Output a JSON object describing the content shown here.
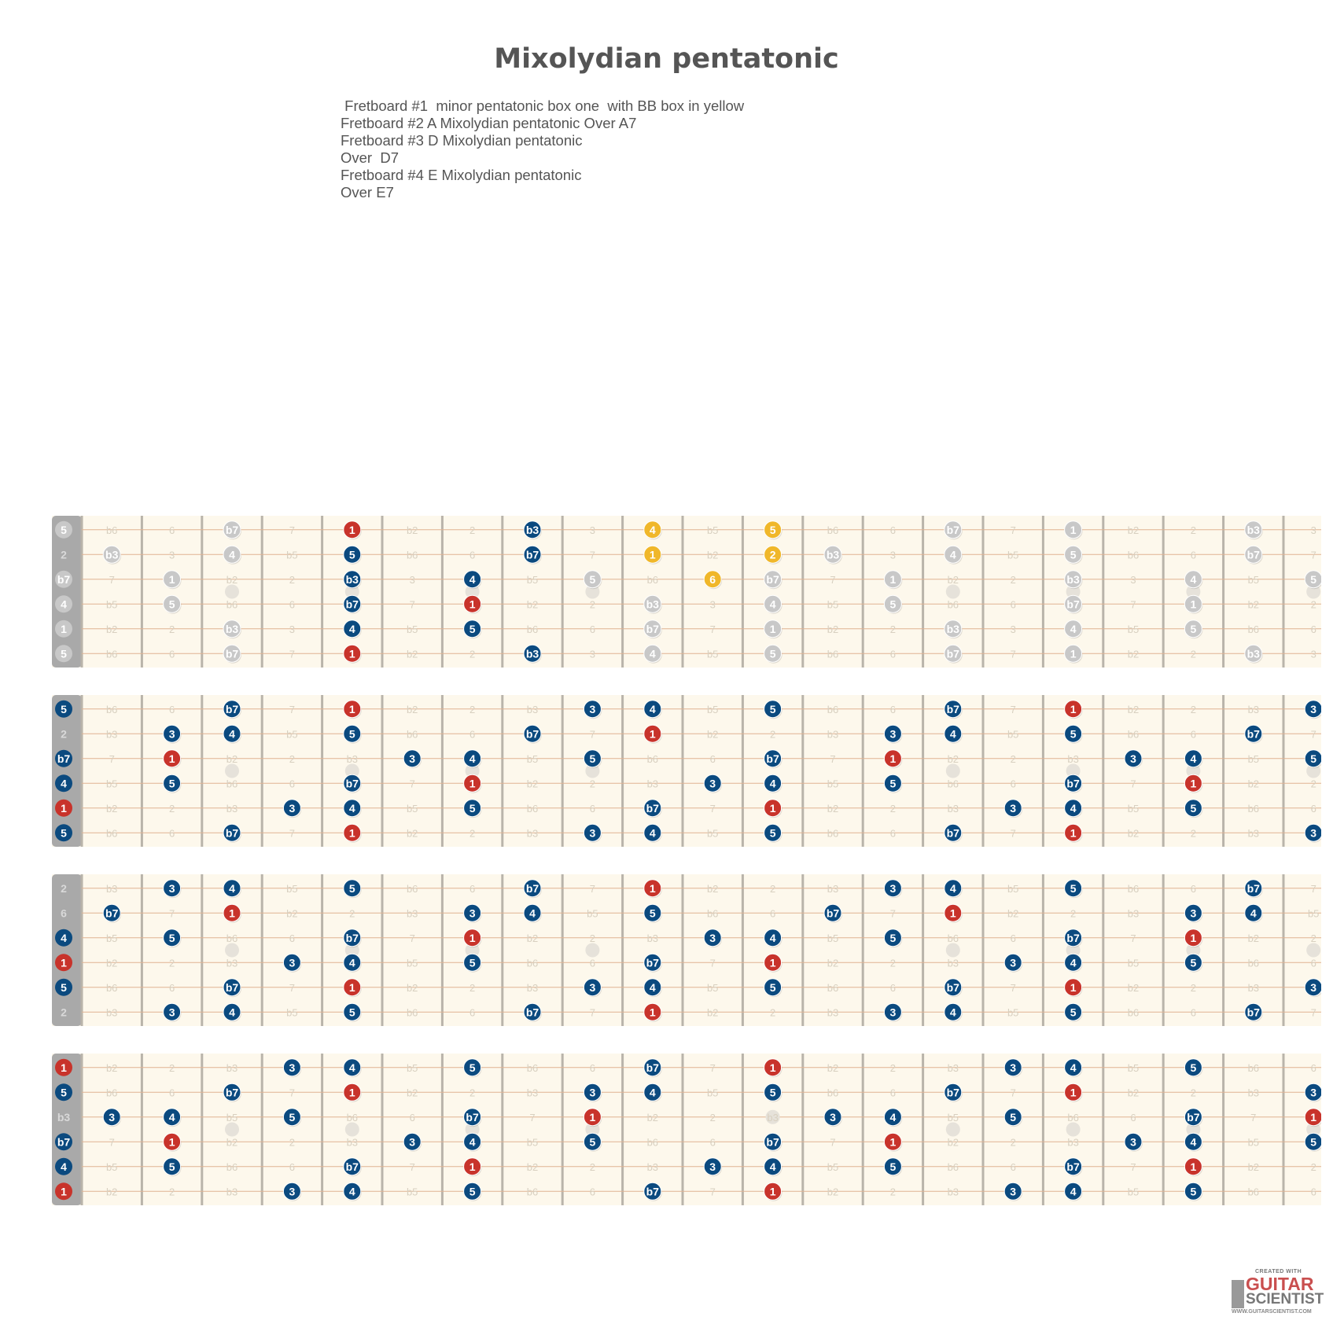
{
  "title": "Mixolydian pentatonic",
  "description": [
    " Fretboard #1  minor pentatonic box one  with BB box in yellow",
    "Fretboard #2 A Mixolydian pentatonic Over A7",
    "Fretboard #3 D Mixolydian pentatonic",
    "Over  D7",
    "Fretboard #4 E Mixolydian pentatonic",
    "Over E7"
  ],
  "colors": {
    "root": "#c8332b",
    "scale": "#0b4a7f",
    "blues_box": "#f0b72a",
    "ghost": "#c8c8c8",
    "board": "#fdf8ec",
    "fret": "#b9b4aa",
    "string": "#e0b292",
    "nut": "#a9a9a9",
    "faint_text": "#d8d0c0"
  },
  "fretboards": [
    {
      "name": "fretboard-1",
      "strings": [
        {
          "open": "5",
          "open_style": "ghost",
          "notes": [
            "b6",
            "6",
            "b7",
            "7",
            "1",
            "b2",
            "2",
            "b3",
            "3",
            "4",
            "b5",
            "5",
            "b6",
            "6",
            "b7",
            "7",
            "1",
            "b2",
            "2",
            "b3",
            "3"
          ],
          "marked": {
            "3": "ghost",
            "5": "root",
            "8": "scale",
            "10": "yellow",
            "12": "yellow",
            "15": "ghost",
            "17": "ghost",
            "20": "ghost"
          }
        },
        {
          "open": "2",
          "open_style": "plain",
          "notes": [
            "b3",
            "3",
            "4",
            "b5",
            "5",
            "b6",
            "6",
            "b7",
            "7",
            "1",
            "b2",
            "2",
            "b3",
            "3",
            "4",
            "b5",
            "5",
            "b6",
            "6",
            "b7",
            "7"
          ],
          "marked": {
            "1": "ghost",
            "3": "ghost",
            "5": "scale",
            "8": "scale",
            "10": "yellow",
            "12": "yellow",
            "13": "ghost",
            "15": "ghost",
            "17": "ghost",
            "20": "ghost"
          }
        },
        {
          "open": "b7",
          "open_style": "ghost",
          "notes": [
            "7",
            "1",
            "b2",
            "2",
            "b3",
            "3",
            "4",
            "b5",
            "5",
            "b6",
            "6",
            "b7",
            "7",
            "1",
            "b2",
            "2",
            "b3",
            "3",
            "4",
            "b5",
            "5"
          ],
          "marked": {
            "2": "ghost",
            "5": "scale",
            "7": "scale",
            "9": "ghost",
            "11": "yellow",
            "12": "ghost",
            "14": "ghost",
            "17": "ghost",
            "19": "ghost",
            "21": "ghost"
          }
        },
        {
          "open": "4",
          "open_style": "ghost",
          "notes": [
            "b5",
            "5",
            "b6",
            "6",
            "b7",
            "7",
            "1",
            "b2",
            "2",
            "b3",
            "3",
            "4",
            "b5",
            "5",
            "b6",
            "6",
            "b7",
            "7",
            "1",
            "b2",
            "2"
          ],
          "marked": {
            "2": "ghost",
            "5": "scale",
            "7": "root",
            "10": "ghost",
            "12": "ghost",
            "14": "ghost",
            "17": "ghost",
            "19": "ghost"
          }
        },
        {
          "open": "1",
          "open_style": "ghost",
          "notes": [
            "b2",
            "2",
            "b3",
            "3",
            "4",
            "b5",
            "5",
            "b6",
            "6",
            "b7",
            "7",
            "1",
            "b2",
            "2",
            "b3",
            "3",
            "4",
            "b5",
            "5",
            "b6",
            "6"
          ],
          "marked": {
            "3": "ghost",
            "5": "scale",
            "7": "scale",
            "10": "ghost",
            "12": "ghost",
            "15": "ghost",
            "17": "ghost",
            "19": "ghost"
          }
        },
        {
          "open": "5",
          "open_style": "ghost",
          "notes": [
            "b6",
            "6",
            "b7",
            "7",
            "1",
            "b2",
            "2",
            "b3",
            "3",
            "4",
            "b5",
            "5",
            "b6",
            "6",
            "b7",
            "7",
            "1",
            "b2",
            "2",
            "b3",
            "3"
          ],
          "marked": {
            "3": "ghost",
            "5": "root",
            "8": "scale",
            "10": "ghost",
            "12": "ghost",
            "15": "ghost",
            "17": "ghost",
            "20": "ghost"
          }
        }
      ]
    },
    {
      "name": "fretboard-2",
      "strings": [
        {
          "open": "5",
          "open_style": "scale",
          "notes": [
            "b6",
            "6",
            "b7",
            "7",
            "1",
            "b2",
            "2",
            "b3",
            "3",
            "4",
            "b5",
            "5",
            "b6",
            "6",
            "b7",
            "7",
            "1",
            "b2",
            "2",
            "b3",
            "3"
          ],
          "marked": {
            "3": "scale",
            "5": "root",
            "9": "scale",
            "10": "scale",
            "12": "scale",
            "15": "scale",
            "17": "root",
            "21": "scale"
          }
        },
        {
          "open": "2",
          "open_style": "plain",
          "notes": [
            "b3",
            "3",
            "4",
            "b5",
            "5",
            "b6",
            "6",
            "b7",
            "7",
            "1",
            "b2",
            "2",
            "b3",
            "3",
            "4",
            "b5",
            "5",
            "b6",
            "6",
            "b7",
            "7"
          ],
          "marked": {
            "2": "scale",
            "3": "scale",
            "5": "scale",
            "8": "scale",
            "10": "root",
            "14": "scale",
            "15": "scale",
            "17": "scale",
            "20": "scale"
          }
        },
        {
          "open": "b7",
          "open_style": "scale",
          "notes": [
            "7",
            "1",
            "b2",
            "2",
            "b3",
            "3",
            "4",
            "b5",
            "5",
            "b6",
            "6",
            "b7",
            "7",
            "1",
            "b2",
            "2",
            "b3",
            "3",
            "4",
            "b5",
            "5"
          ],
          "marked": {
            "2": "root",
            "6": "scale",
            "7": "scale",
            "9": "scale",
            "12": "scale",
            "14": "root",
            "18": "scale",
            "19": "scale",
            "21": "scale"
          }
        },
        {
          "open": "4",
          "open_style": "scale",
          "notes": [
            "b5",
            "5",
            "b6",
            "6",
            "b7",
            "7",
            "1",
            "b2",
            "2",
            "b3",
            "3",
            "4",
            "b5",
            "5",
            "b6",
            "6",
            "b7",
            "7",
            "1",
            "b2",
            "2"
          ],
          "marked": {
            "2": "scale",
            "5": "scale",
            "7": "root",
            "11": "scale",
            "12": "scale",
            "14": "scale",
            "17": "scale",
            "19": "root"
          }
        },
        {
          "open": "1",
          "open_style": "root",
          "notes": [
            "b2",
            "2",
            "b3",
            "3",
            "4",
            "b5",
            "5",
            "b6",
            "6",
            "b7",
            "7",
            "1",
            "b2",
            "2",
            "b3",
            "3",
            "4",
            "b5",
            "5",
            "b6",
            "6"
          ],
          "marked": {
            "4": "scale",
            "5": "scale",
            "7": "scale",
            "10": "scale",
            "12": "root",
            "16": "scale",
            "17": "scale",
            "19": "scale"
          }
        },
        {
          "open": "5",
          "open_style": "scale",
          "notes": [
            "b6",
            "6",
            "b7",
            "7",
            "1",
            "b2",
            "2",
            "b3",
            "3",
            "4",
            "b5",
            "5",
            "b6",
            "6",
            "b7",
            "7",
            "1",
            "b2",
            "2",
            "b3",
            "3"
          ],
          "marked": {
            "3": "scale",
            "5": "root",
            "9": "scale",
            "10": "scale",
            "12": "scale",
            "15": "scale",
            "17": "root",
            "21": "scale"
          }
        }
      ]
    },
    {
      "name": "fretboard-3",
      "strings": [
        {
          "open": "2",
          "open_style": "plain",
          "notes": [
            "b3",
            "3",
            "4",
            "b5",
            "5",
            "b6",
            "6",
            "b7",
            "7",
            "1",
            "b2",
            "2",
            "b3",
            "3",
            "4",
            "b5",
            "5",
            "b6",
            "6",
            "b7",
            "7"
          ],
          "marked": {
            "2": "scale",
            "3": "scale",
            "5": "scale",
            "8": "scale",
            "10": "root",
            "14": "scale",
            "15": "scale",
            "17": "scale",
            "20": "scale"
          }
        },
        {
          "open": "6",
          "open_style": "plain",
          "notes": [
            "b7",
            "7",
            "1",
            "b2",
            "2",
            "b3",
            "3",
            "4",
            "b5",
            "5",
            "b6",
            "6",
            "b7",
            "7",
            "1",
            "b2",
            "2",
            "b3",
            "3",
            "4",
            "b5"
          ],
          "marked": {
            "1": "scale",
            "3": "root",
            "7": "scale",
            "8": "scale",
            "10": "scale",
            "13": "scale",
            "15": "root",
            "19": "scale",
            "20": "scale"
          }
        },
        {
          "open": "4",
          "open_style": "scale",
          "notes": [
            "b5",
            "5",
            "b6",
            "6",
            "b7",
            "7",
            "1",
            "b2",
            "2",
            "b3",
            "3",
            "4",
            "b5",
            "5",
            "b6",
            "6",
            "b7",
            "7",
            "1",
            "b2",
            "2"
          ],
          "marked": {
            "2": "scale",
            "5": "scale",
            "7": "root",
            "11": "scale",
            "12": "scale",
            "14": "scale",
            "17": "scale",
            "19": "root"
          }
        },
        {
          "open": "1",
          "open_style": "root",
          "notes": [
            "b2",
            "2",
            "b3",
            "3",
            "4",
            "b5",
            "5",
            "b6",
            "6",
            "b7",
            "7",
            "1",
            "b2",
            "2",
            "b3",
            "3",
            "4",
            "b5",
            "5",
            "b6",
            "6"
          ],
          "marked": {
            "4": "scale",
            "5": "scale",
            "7": "scale",
            "10": "scale",
            "12": "root",
            "16": "scale",
            "17": "scale",
            "19": "scale"
          }
        },
        {
          "open": "5",
          "open_style": "scale",
          "notes": [
            "b6",
            "6",
            "b7",
            "7",
            "1",
            "b2",
            "2",
            "b3",
            "3",
            "4",
            "b5",
            "5",
            "b6",
            "6",
            "b7",
            "7",
            "1",
            "b2",
            "2",
            "b3",
            "3"
          ],
          "marked": {
            "3": "scale",
            "5": "root",
            "9": "scale",
            "10": "scale",
            "12": "scale",
            "15": "scale",
            "17": "root",
            "21": "scale"
          }
        },
        {
          "open": "2",
          "open_style": "plain",
          "notes": [
            "b3",
            "3",
            "4",
            "b5",
            "5",
            "b6",
            "6",
            "b7",
            "7",
            "1",
            "b2",
            "2",
            "b3",
            "3",
            "4",
            "b5",
            "5",
            "b6",
            "6",
            "b7",
            "7"
          ],
          "marked": {
            "2": "scale",
            "3": "scale",
            "5": "scale",
            "8": "scale",
            "10": "root",
            "14": "scale",
            "15": "scale",
            "17": "scale",
            "20": "scale"
          }
        }
      ]
    },
    {
      "name": "fretboard-4",
      "strings": [
        {
          "open": "1",
          "open_style": "root",
          "notes": [
            "b2",
            "2",
            "b3",
            "3",
            "4",
            "b5",
            "5",
            "b6",
            "6",
            "b7",
            "7",
            "1",
            "b2",
            "2",
            "b3",
            "3",
            "4",
            "b5",
            "5",
            "b6",
            "6"
          ],
          "marked": {
            "4": "scale",
            "5": "scale",
            "7": "scale",
            "10": "scale",
            "12": "root",
            "16": "scale",
            "17": "scale",
            "19": "scale"
          }
        },
        {
          "open": "5",
          "open_style": "scale",
          "notes": [
            "b6",
            "6",
            "b7",
            "7",
            "1",
            "b2",
            "2",
            "b3",
            "3",
            "4",
            "b5",
            "5",
            "b6",
            "6",
            "b7",
            "7",
            "1",
            "b2",
            "2",
            "b3",
            "3"
          ],
          "marked": {
            "3": "scale",
            "5": "root",
            "9": "scale",
            "10": "scale",
            "12": "scale",
            "15": "scale",
            "17": "root",
            "21": "scale"
          }
        },
        {
          "open": "b3",
          "open_style": "plain",
          "notes": [
            "3",
            "4",
            "b5",
            "5",
            "b6",
            "6",
            "b7",
            "7",
            "1",
            "b2",
            "2",
            "b3",
            "3",
            "4",
            "b5",
            "5",
            "b6",
            "6",
            "b7",
            "7",
            "1"
          ],
          "marked": {
            "1": "scale",
            "2": "scale",
            "4": "scale",
            "7": "scale",
            "9": "root",
            "13": "scale",
            "14": "scale",
            "16": "scale",
            "19": "scale",
            "21": "root"
          }
        },
        {
          "open": "b7",
          "open_style": "scale",
          "notes": [
            "7",
            "1",
            "b2",
            "2",
            "b3",
            "3",
            "4",
            "b5",
            "5",
            "b6",
            "6",
            "b7",
            "7",
            "1",
            "b2",
            "2",
            "b3",
            "3",
            "4",
            "b5",
            "5"
          ],
          "marked": {
            "2": "root",
            "6": "scale",
            "7": "scale",
            "9": "scale",
            "12": "scale",
            "14": "root",
            "18": "scale",
            "19": "scale",
            "21": "scale"
          }
        },
        {
          "open": "4",
          "open_style": "scale",
          "notes": [
            "b5",
            "5",
            "b6",
            "6",
            "b7",
            "7",
            "1",
            "b2",
            "2",
            "b3",
            "3",
            "4",
            "b5",
            "5",
            "b6",
            "6",
            "b7",
            "7",
            "1",
            "b2",
            "2"
          ],
          "marked": {
            "2": "scale",
            "5": "scale",
            "7": "root",
            "11": "scale",
            "12": "scale",
            "14": "scale",
            "17": "scale",
            "19": "root"
          }
        },
        {
          "open": "1",
          "open_style": "root",
          "notes": [
            "b2",
            "2",
            "b3",
            "3",
            "4",
            "b5",
            "5",
            "b6",
            "6",
            "b7",
            "7",
            "1",
            "b2",
            "2",
            "b3",
            "3",
            "4",
            "b5",
            "5",
            "b6",
            "6"
          ],
          "marked": {
            "4": "scale",
            "5": "scale",
            "7": "scale",
            "10": "scale",
            "12": "root",
            "16": "scale",
            "17": "scale",
            "19": "scale"
          }
        }
      ]
    }
  ],
  "inlay_frets": [
    3,
    5,
    7,
    9,
    12,
    15,
    17,
    19,
    21
  ],
  "brand": {
    "top": "CREATED WITH",
    "line1": "GUITAR",
    "line2": "SCIENTIST",
    "url": "WWW.GUITARSCIENTIST.COM"
  }
}
